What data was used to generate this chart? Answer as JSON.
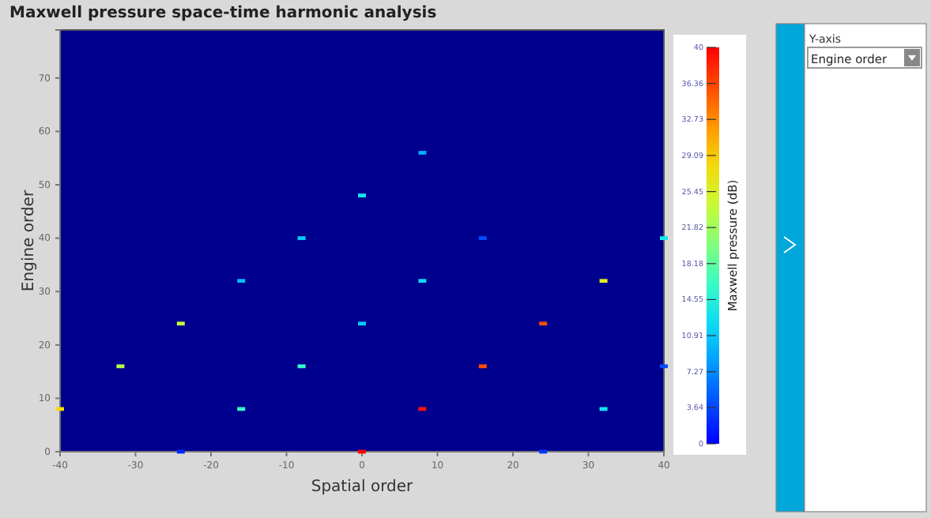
{
  "chart_data": {
    "type": "scatter",
    "title": "Maxwell pressure space-time harmonic analysis",
    "xlabel": "Spatial order",
    "ylabel": "Engine order",
    "clabel": "Maxwell pressure (dB)",
    "xlim": [
      -40,
      40
    ],
    "xticks": [
      -40,
      -30,
      -20,
      -10,
      0,
      10,
      20,
      30,
      40
    ],
    "ylim": [
      0,
      79
    ],
    "yticks": [
      0,
      10,
      20,
      30,
      40,
      50,
      60,
      70
    ],
    "clim": [
      0,
      40
    ],
    "cticks": [
      0,
      3.64,
      7.27,
      10.91,
      14.55,
      18.18,
      21.82,
      25.45,
      29.09,
      32.73,
      36.36,
      40
    ],
    "marker": "square",
    "annotations": [
      "Y-axis",
      "Engine order"
    ],
    "series": [
      {
        "x": [
          -40,
          -32,
          -24,
          -24,
          -16,
          -16,
          -8,
          -8,
          0,
          0,
          0,
          8,
          8,
          8,
          16,
          16,
          24,
          24,
          32,
          32,
          40,
          40
        ],
        "values": [
          8,
          16,
          24,
          0,
          8,
          32,
          16,
          40,
          0,
          24,
          48,
          8,
          32,
          56,
          16,
          40,
          24,
          0,
          8,
          32,
          40,
          16
        ],
        "cvalues": [
          28,
          23,
          24,
          2,
          16,
          10,
          16,
          11,
          40,
          11,
          13,
          39,
          12,
          9,
          36,
          4,
          36,
          3,
          13,
          26,
          13,
          4
        ]
      }
    ]
  }
}
